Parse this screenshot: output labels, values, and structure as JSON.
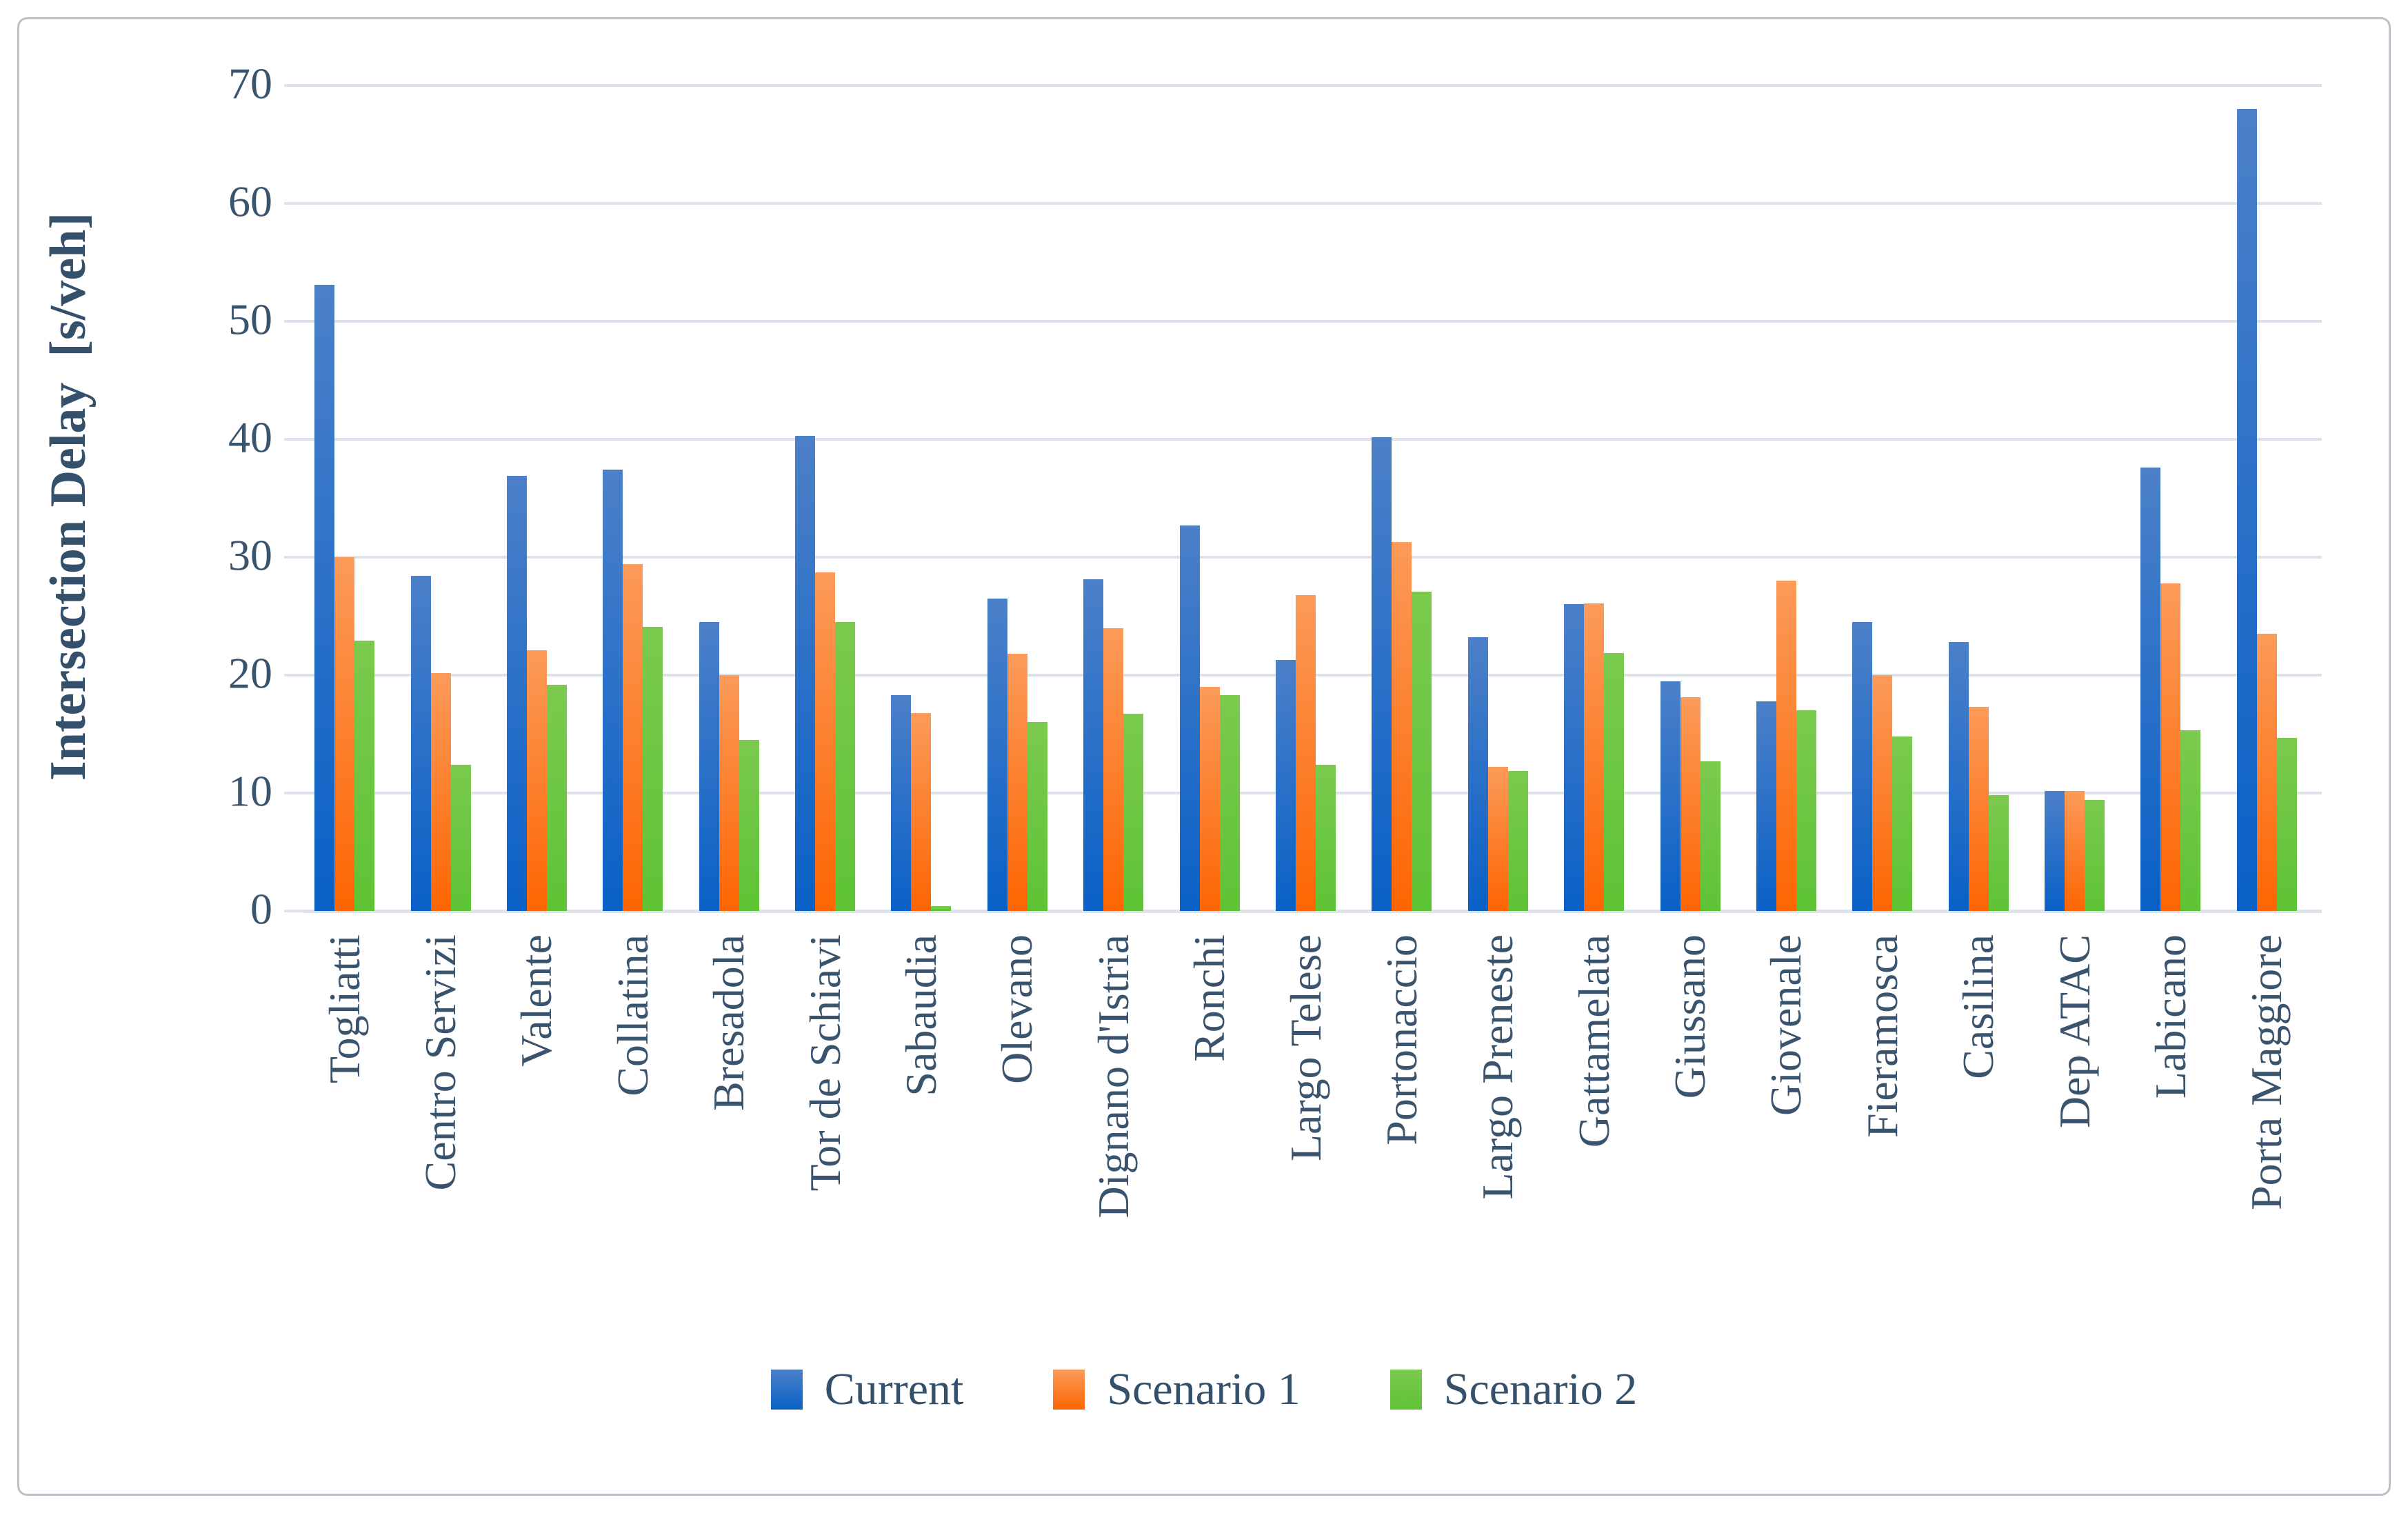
{
  "figure": {
    "background_color": "#ffffff",
    "border_color": "#bac1c9",
    "text_color": "#3a546e",
    "gridline_color": "#dde3ea"
  },
  "chart_data": {
    "type": "bar",
    "title": "",
    "xlabel": "",
    "ylabel": "Intersection Delay  [s/veh]",
    "ylim": [
      0,
      70
    ],
    "yticks": [
      0,
      10,
      20,
      30,
      40,
      50,
      60,
      70
    ],
    "grid": "horizontal",
    "legend_position": "bottom",
    "categories": [
      "Togliatti",
      "Centro Servizi",
      "Valente",
      "Collatina",
      "Bresadola",
      "Tor de Schiavi",
      "Sabaudia",
      "Olevano",
      "Dignano d'Istria",
      "Ronchi",
      "Largo Telese",
      "Portonaccio",
      "Largo Preneste",
      "Gattamelata",
      "Giussano",
      "Giovenale",
      "Fieramosca",
      "Casilina",
      "Dep ATAC",
      "Labicano",
      "Porta Maggiore"
    ],
    "series": [
      {
        "name": "Current",
        "color_top": "#4c80c8",
        "color_bottom": "#0961c7",
        "values": [
          53.1,
          28.4,
          36.9,
          37.4,
          24.5,
          40.3,
          18.3,
          26.5,
          28.1,
          32.7,
          21.3,
          40.2,
          23.2,
          26.0,
          19.5,
          17.8,
          24.5,
          22.8,
          10.2,
          37.6,
          68.0
        ]
      },
      {
        "name": "Scenario 1",
        "color_top": "#fc9b59",
        "color_bottom": "#fd6502",
        "values": [
          30.0,
          20.2,
          22.1,
          29.4,
          20.0,
          28.7,
          16.8,
          21.8,
          24.0,
          19.0,
          26.8,
          31.3,
          12.2,
          26.1,
          18.1,
          28.0,
          20.0,
          17.3,
          10.2,
          27.8,
          23.5
        ]
      },
      {
        "name": "Scenario 2",
        "color_top": "#7bca4e",
        "color_bottom": "#5ec335",
        "values": [
          22.9,
          12.4,
          19.2,
          24.1,
          14.5,
          24.5,
          0.4,
          16.0,
          16.7,
          18.3,
          12.4,
          27.1,
          11.9,
          21.9,
          12.7,
          17.0,
          14.8,
          9.8,
          9.4,
          15.3,
          14.7
        ]
      }
    ]
  }
}
